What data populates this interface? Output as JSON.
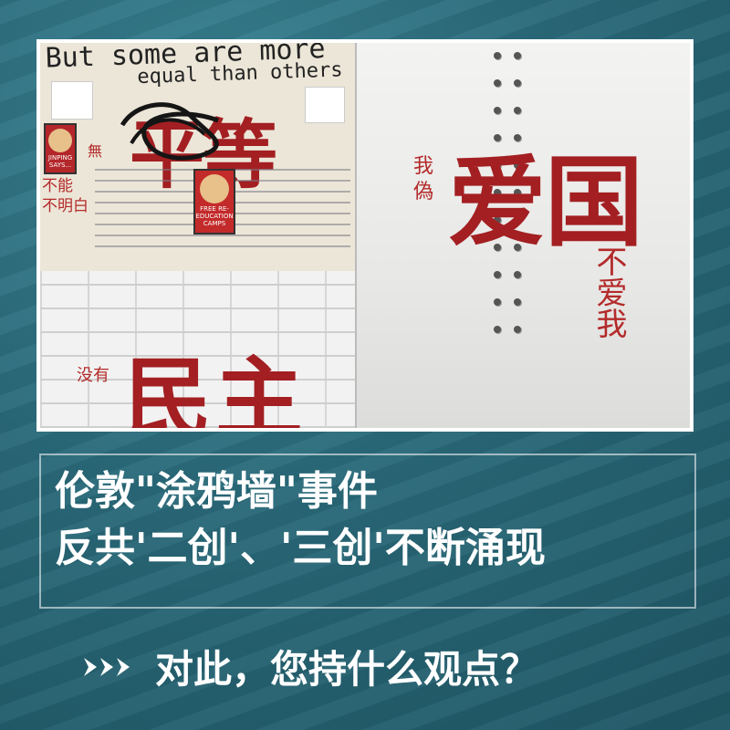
{
  "photo": {
    "graffiti_english_line1": "But some are more",
    "graffiti_english_line2": "equal than others",
    "left_big_red": "平等",
    "left_small_red_top": "無",
    "left_small_red_lines": [
      "不能",
      "不明白"
    ],
    "bottom_small_red": "没有",
    "bottom_big_red": "民主",
    "right_small_red_left": "我偽",
    "right_big_red": "爱国",
    "right_small_red_vertical": "不爱我",
    "poster_left_caption": "JINPING SAYS...",
    "poster_center_caption": "FREE RE-EDUCATION CAMPS"
  },
  "headline": {
    "line1": "伦敦\"涂鸦墙\"事件",
    "line2": "反共'二创'、'三创'不断涌现"
  },
  "question": {
    "text": "对此，您持什么观点？",
    "icon": "triple-chevron-right-icon"
  },
  "colors": {
    "background": "#2c7080",
    "graffiti_red": "#a31f22",
    "text": "#ffffff"
  }
}
